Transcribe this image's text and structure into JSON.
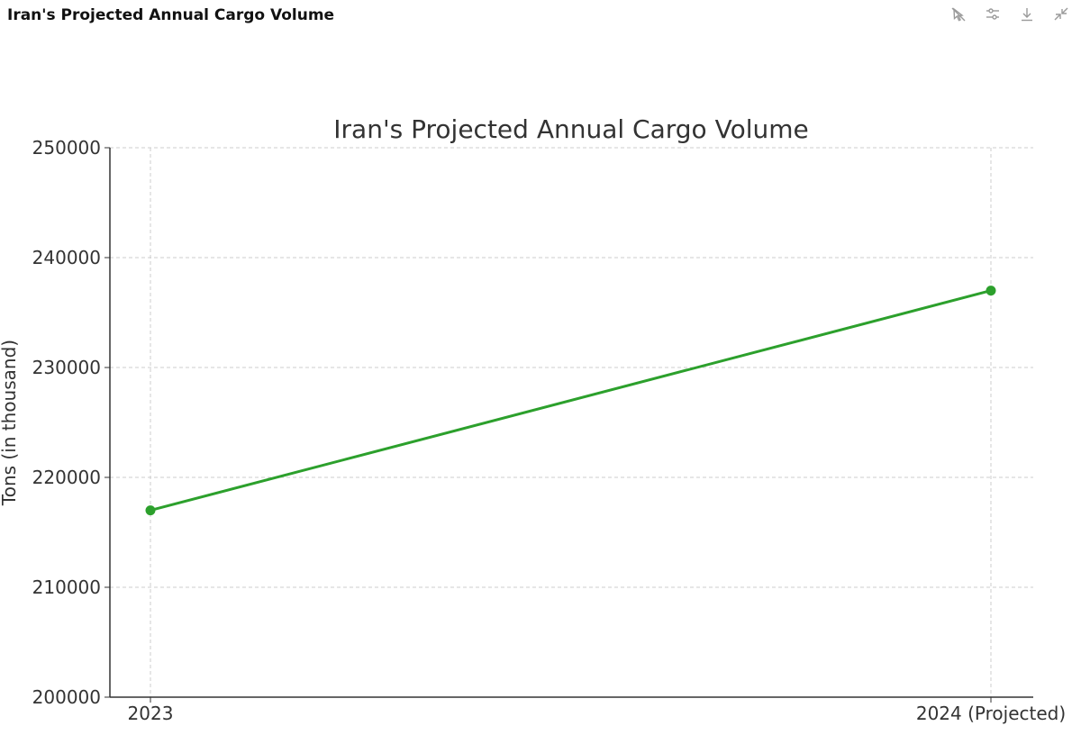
{
  "panel": {
    "title": "Iran's Projected Annual Cargo Volume"
  },
  "toolbar": {
    "icons": [
      "disable-interactivity-icon",
      "settings-sliders-icon",
      "download-icon",
      "collapse-icon"
    ]
  },
  "chart_data": {
    "type": "line",
    "title": "Iran's Projected Annual Cargo Volume",
    "xlabel": "",
    "ylabel": "Tons (in thousand)",
    "categories": [
      "2023",
      "2024 (Projected)"
    ],
    "series": [
      {
        "values": [
          217000,
          237000
        ],
        "color": "#2ca02c",
        "marker": "circle"
      }
    ],
    "ylim": [
      200000,
      250000
    ],
    "yticks": [
      200000,
      210000,
      220000,
      230000,
      240000,
      250000
    ],
    "grid": true,
    "grid_style": "dashed"
  }
}
